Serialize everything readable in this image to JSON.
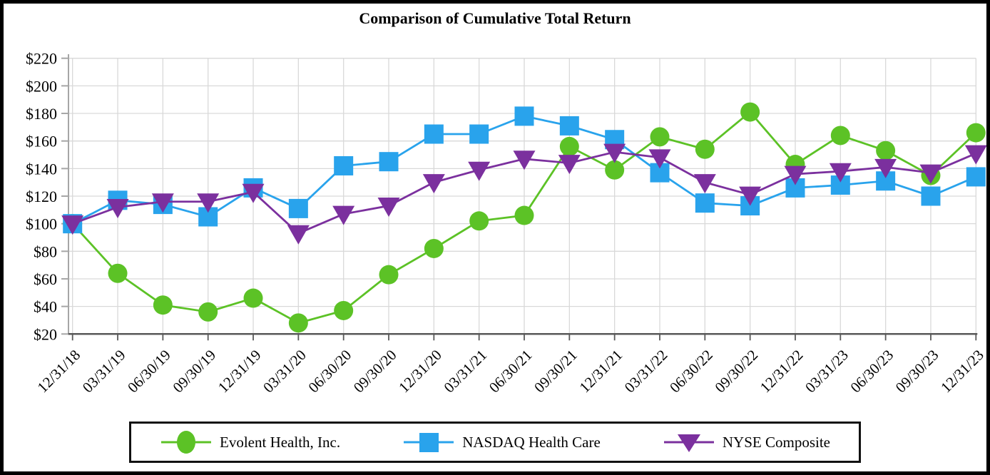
{
  "chart_data": {
    "type": "line",
    "title": "Comparison of Cumulative Total Return",
    "x_labels": [
      "12/31/18",
      "03/31/19",
      "06/30/19",
      "09/30/19",
      "12/31/19",
      "03/31/20",
      "06/30/20",
      "09/30/20",
      "12/31/20",
      "03/31/21",
      "06/30/21",
      "09/30/21",
      "12/31/21",
      "03/31/22",
      "06/30/22",
      "09/30/22",
      "12/31/22",
      "03/31/23",
      "06/30/23",
      "09/30/23",
      "12/31/23"
    ],
    "y_axis": {
      "min": 20,
      "max": 220,
      "step": 20,
      "tick_labels": [
        "$20",
        "$40",
        "$60",
        "$80",
        "$100",
        "$120",
        "$140",
        "$160",
        "$180",
        "$200",
        "$220"
      ]
    },
    "grid": true,
    "legend_position": "bottom",
    "series": [
      {
        "name": "Evolent Health, Inc.",
        "marker": "circle",
        "color": "#5CC226",
        "values": [
          100,
          64,
          41,
          36,
          46,
          28,
          37,
          63,
          82,
          102,
          106,
          156,
          139,
          163,
          154,
          181,
          143,
          164,
          153,
          135,
          166
        ]
      },
      {
        "name": "NASDAQ Health Care",
        "marker": "square",
        "color": "#29A3EC",
        "values": [
          100,
          117,
          114,
          105,
          126,
          111,
          142,
          145,
          165,
          165,
          178,
          171,
          161,
          137,
          115,
          113,
          126,
          128,
          131,
          120,
          134
        ]
      },
      {
        "name": "NYSE Composite",
        "marker": "triangle-down",
        "color": "#7B309E",
        "values": [
          100,
          112,
          116,
          116,
          123,
          93,
          107,
          113,
          130,
          139,
          147,
          144,
          152,
          148,
          130,
          121,
          136,
          138,
          141,
          137,
          151
        ]
      }
    ]
  }
}
